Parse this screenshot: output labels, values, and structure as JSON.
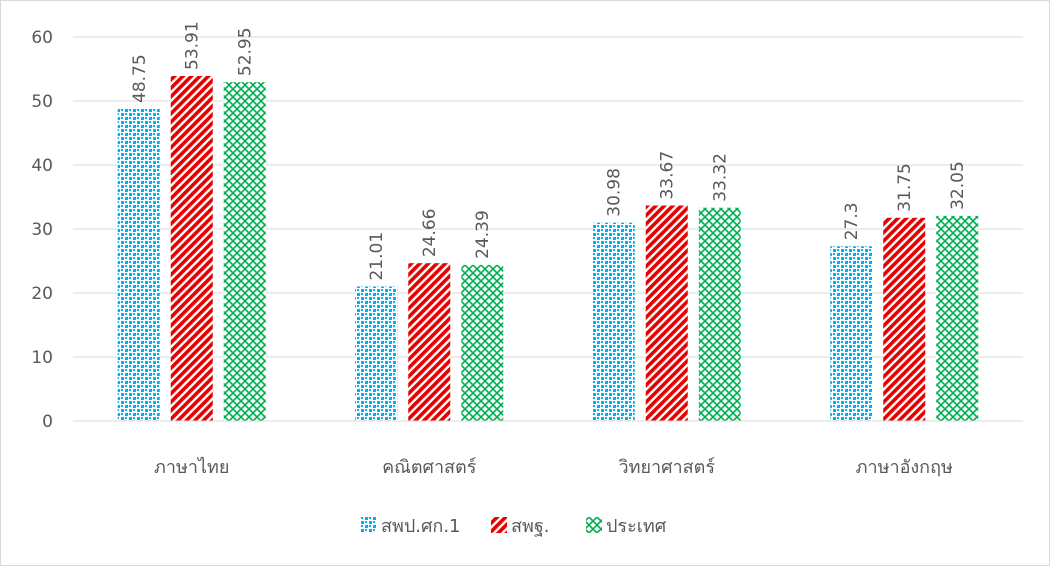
{
  "chart_data": {
    "type": "bar",
    "categories": [
      "ภาษาไทย",
      "คณิตศาสตร์",
      "วิทยาศาสตร์",
      "ภาษาอังกฤษ"
    ],
    "series": [
      {
        "name": "สพป.ศก.1",
        "values": [
          48.75,
          21.01,
          30.98,
          27.3
        ],
        "labels": [
          "48.75",
          "21.01",
          "30.98",
          "27.3"
        ],
        "color": "#00b0f0",
        "pattern": "blue-dotted-grid"
      },
      {
        "name": "สพฐ.",
        "values": [
          53.91,
          24.66,
          33.67,
          31.75
        ],
        "labels": [
          "53.91",
          "24.66",
          "33.67",
          "31.75"
        ],
        "color": "#e60000",
        "pattern": "red-diagonal-stripes"
      },
      {
        "name": "ประเทศ",
        "values": [
          52.95,
          24.39,
          33.32,
          32.05
        ],
        "labels": [
          "52.95",
          "24.39",
          "33.32",
          "32.05"
        ],
        "color": "#00b050",
        "pattern": "green-lattice"
      }
    ],
    "yticks": [
      "0",
      "10",
      "20",
      "30",
      "40",
      "50",
      "60"
    ],
    "ylim": [
      0,
      60
    ],
    "grid": true,
    "legend": "bottom",
    "data_labels": "rotated-vertical"
  }
}
